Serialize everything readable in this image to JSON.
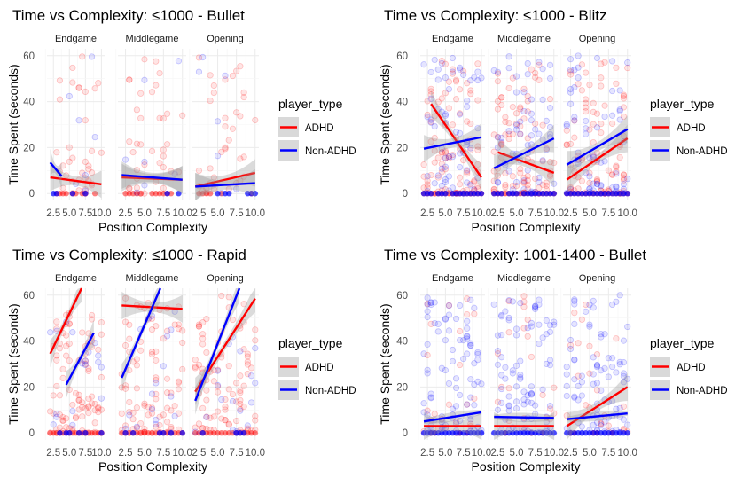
{
  "figure": {
    "width": 838,
    "height": 539
  },
  "chart_data": [
    {
      "type": "scatter",
      "title": "Time vs Complexity: ≤1000 - Bullet",
      "xlabel": "Position Complexity",
      "ylabel": "Time Spent (seconds)",
      "xlim": [
        1.5,
        10.5
      ],
      "ylim": [
        -3,
        63
      ],
      "x_ticks": [
        "2.5",
        "5.0",
        "7.5",
        "10.0"
      ],
      "y_ticks": [
        0,
        20,
        40,
        60
      ],
      "facets": [
        "Endgame",
        "Middlegame",
        "Opening"
      ],
      "legend": {
        "title": "player_type",
        "entries": [
          "ADHD",
          "Non-ADHD"
        ],
        "position": "right"
      },
      "series_colors": {
        "ADHD": "#ff0000",
        "Non-ADHD": "#0000ff"
      },
      "density": {
        "ADHD": 0.4,
        "Non-ADHD": 0.08
      },
      "fit_lines": {
        "ADHD": [
          [
            [
              2,
              7
            ],
            [
              10,
              4
            ]
          ],
          [
            [
              2,
              7
            ],
            [
              10,
              6
            ]
          ],
          [
            [
              2,
              3
            ],
            [
              10,
              9
            ]
          ]
        ],
        "Non-ADHD": [
          [
            [
              2,
              13.5
            ],
            [
              3.8,
              7.5
            ]
          ],
          [
            [
              2,
              8
            ],
            [
              10,
              6
            ]
          ],
          [
            [
              2,
              3
            ],
            [
              10,
              4.5
            ]
          ]
        ]
      }
    },
    {
      "type": "scatter",
      "title": "Time vs Complexity: ≤1000 - Blitz",
      "xlabel": "Position Complexity",
      "ylabel": "Time Spent (seconds)",
      "xlim": [
        1.5,
        10.5
      ],
      "ylim": [
        -3,
        63
      ],
      "x_ticks": [
        "2.5",
        "5.0",
        "7.5",
        "10.0"
      ],
      "y_ticks": [
        0,
        20,
        40,
        60
      ],
      "facets": [
        "Endgame",
        "Middlegame",
        "Opening"
      ],
      "legend": {
        "title": "player_type",
        "entries": [
          "ADHD",
          "Non-ADHD"
        ],
        "position": "right"
      },
      "series_colors": {
        "ADHD": "#ff0000",
        "Non-ADHD": "#0000ff"
      },
      "density": {
        "ADHD": 1.0,
        "Non-ADHD": 0.7
      },
      "fit_lines": {
        "ADHD": [
          [
            [
              3,
              39
            ],
            [
              10,
              7
            ]
          ],
          [
            [
              2.5,
              18
            ],
            [
              10,
              9
            ]
          ],
          [
            [
              2,
              6
            ],
            [
              10,
              24
            ]
          ]
        ],
        "Non-ADHD": [
          [
            [
              2,
              19.5
            ],
            [
              10,
              24.5
            ]
          ],
          [
            [
              2,
              11
            ],
            [
              10,
              24
            ]
          ],
          [
            [
              2,
              12.5
            ],
            [
              10,
              28
            ]
          ]
        ]
      }
    },
    {
      "type": "scatter",
      "title": "Time vs Complexity: ≤1000 - Rapid",
      "xlabel": "Position Complexity",
      "ylabel": "Time Spent (seconds)",
      "xlim": [
        1.5,
        10.5
      ],
      "ylim": [
        -3,
        63
      ],
      "x_ticks": [
        "2.5",
        "5.0",
        "7.5",
        "10.0"
      ],
      "y_ticks": [
        0,
        20,
        40,
        60
      ],
      "facets": [
        "Endgame",
        "Middlegame",
        "Opening"
      ],
      "legend": {
        "title": "player_type",
        "entries": [
          "ADHD",
          "Non-ADHD"
        ],
        "position": "right"
      },
      "series_colors": {
        "ADHD": "#ff0000",
        "Non-ADHD": "#0000ff"
      },
      "density": {
        "ADHD": 1.0,
        "Non-ADHD": 0.2
      },
      "fit_lines": {
        "ADHD": [
          [
            [
              2,
              34.5
            ],
            [
              6.9,
              63
            ]
          ],
          [
            [
              2,
              55.5
            ],
            [
              10,
              54
            ]
          ],
          [
            [
              2,
              18
            ],
            [
              10,
              58.5
            ]
          ]
        ],
        "Non-ADHD": [
          [
            [
              4.5,
              21
            ],
            [
              8.8,
              43.5
            ]
          ],
          [
            [
              2,
              24
            ],
            [
              7.1,
              63
            ]
          ],
          [
            [
              2,
              14
            ],
            [
              7.9,
              63
            ]
          ]
        ]
      }
    },
    {
      "type": "scatter",
      "title": "Time vs Complexity: 1001-1400 - Bullet",
      "xlabel": "Position Complexity",
      "ylabel": "Time Spent (seconds)",
      "xlim": [
        1.5,
        10.5
      ],
      "ylim": [
        -3,
        63
      ],
      "x_ticks": [
        "2.5",
        "5.0",
        "7.5",
        "10.0"
      ],
      "y_ticks": [
        0,
        20,
        40,
        60
      ],
      "facets": [
        "Endgame",
        "Middlegame",
        "Opening"
      ],
      "legend": {
        "title": "player_type",
        "entries": [
          "ADHD",
          "Non-ADHD"
        ],
        "position": "right"
      },
      "series_colors": {
        "ADHD": "#ff0000",
        "Non-ADHD": "#0000ff"
      },
      "density": {
        "ADHD": 0.25,
        "Non-ADHD": 1.0
      },
      "fit_lines": {
        "ADHD": [
          [
            [
              2,
              3
            ],
            [
              10,
              3
            ]
          ],
          [
            [
              2,
              3
            ],
            [
              10,
              3
            ]
          ],
          [
            [
              2,
              3
            ],
            [
              10,
              20
            ]
          ]
        ],
        "Non-ADHD": [
          [
            [
              2,
              5
            ],
            [
              10,
              9
            ]
          ],
          [
            [
              2,
              7
            ],
            [
              10,
              6.5
            ]
          ],
          [
            [
              2,
              6
            ],
            [
              10,
              8.5
            ]
          ]
        ]
      }
    }
  ]
}
